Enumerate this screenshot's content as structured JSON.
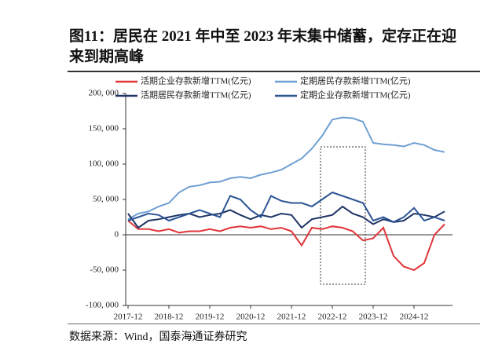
{
  "title": "图11：居民在 2021 年中至 2023 年末集中储蓄，定存正在迎来到期高峰",
  "source": "数据来源：Wind，国泰海通证券研究",
  "chart_data": {
    "type": "line",
    "x": [
      "2017-12",
      "2018-03",
      "2018-06",
      "2018-09",
      "2018-12",
      "2019-03",
      "2019-06",
      "2019-09",
      "2019-12",
      "2020-03",
      "2020-06",
      "2020-09",
      "2020-12",
      "2021-03",
      "2021-06",
      "2021-09",
      "2021-12",
      "2022-03",
      "2022-06",
      "2022-09",
      "2022-12",
      "2023-03",
      "2023-06",
      "2023-09",
      "2023-12",
      "2024-03",
      "2024-06",
      "2024-09",
      "2024-12",
      "2025-03",
      "2025-06",
      "2025-09"
    ],
    "xlim": [
      "2017-12",
      "2025-09"
    ],
    "xticks": [
      "2017-12",
      "2018-12",
      "2019-12",
      "2020-12",
      "2021-12",
      "2022-12",
      "2023-12",
      "2024-12"
    ],
    "ylim": [
      -100000,
      200000
    ],
    "yticks": [
      {
        "value": -100000,
        "label": "-100, 000"
      },
      {
        "value": -50000,
        "label": "-50, 000"
      },
      0,
      {
        "value": 50000,
        "label": "50, 000"
      },
      {
        "value": 100000,
        "label": "100, 000"
      },
      {
        "value": 150000,
        "label": "150, 000"
      },
      {
        "value": 200000,
        "label": "200, 000"
      }
    ],
    "series": [
      {
        "name": "活期企业存款新增TTM(亿元)",
        "color": "#e0363a",
        "values": [
          20000,
          8000,
          8000,
          5000,
          8000,
          3000,
          5000,
          5000,
          8000,
          5000,
          10000,
          12000,
          10000,
          12000,
          8000,
          10000,
          5000,
          -15000,
          10000,
          8000,
          12000,
          10000,
          5000,
          -8000,
          -5000,
          10000,
          -30000,
          -45000,
          -50000,
          -40000,
          0,
          15000
        ]
      },
      {
        "name": "定期居民存款新增TTM(亿元)",
        "color": "#6f9fd2",
        "values": [
          22000,
          30000,
          33000,
          40000,
          45000,
          60000,
          68000,
          70000,
          74000,
          75000,
          80000,
          82000,
          80000,
          85000,
          88000,
          92000,
          100000,
          108000,
          122000,
          140000,
          163000,
          166000,
          165000,
          160000,
          130000,
          128000,
          127000,
          125000,
          130000,
          127000,
          120000,
          117000
        ]
      },
      {
        "name": "活期居民存款新增TTM(亿元)",
        "color": "#1f3566",
        "values": [
          30000,
          10000,
          20000,
          22000,
          25000,
          28000,
          30000,
          25000,
          28000,
          30000,
          35000,
          28000,
          22000,
          28000,
          25000,
          30000,
          28000,
          10000,
          22000,
          25000,
          28000,
          40000,
          30000,
          25000,
          15000,
          22000,
          18000,
          20000,
          30000,
          28000,
          25000,
          33000
        ]
      },
      {
        "name": "定期企业存款新增TTM(亿元)",
        "color": "#2c5596",
        "values": [
          20000,
          25000,
          30000,
          28000,
          20000,
          25000,
          30000,
          35000,
          30000,
          25000,
          55000,
          50000,
          35000,
          25000,
          55000,
          48000,
          45000,
          45000,
          40000,
          50000,
          60000,
          55000,
          50000,
          45000,
          20000,
          25000,
          18000,
          25000,
          38000,
          20000,
          25000,
          20000
        ]
      }
    ]
  }
}
